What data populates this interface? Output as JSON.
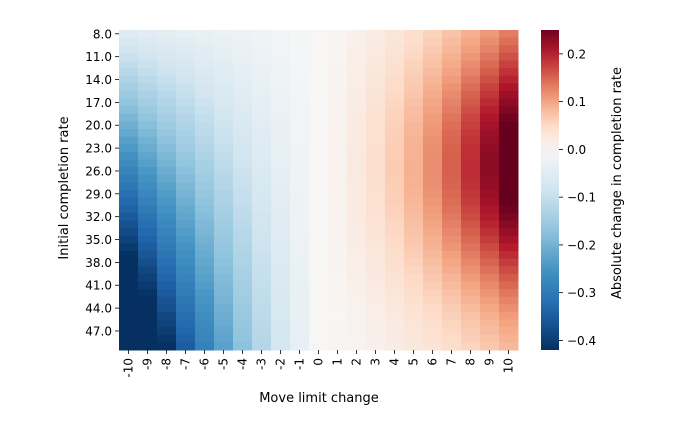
{
  "chart_data": {
    "type": "heatmap",
    "xlabel": "Move limit change",
    "ylabel": "Initial completion rate",
    "x_ticks": [
      "-10",
      "-9",
      "-8",
      "-7",
      "-6",
      "-5",
      "-4",
      "-3",
      "-2",
      "-1",
      "0",
      "1",
      "2",
      "3",
      "4",
      "5",
      "6",
      "7",
      "8",
      "9",
      "10"
    ],
    "y_ticks": [
      "8.0",
      "11.0",
      "14.0",
      "17.0",
      "20.0",
      "23.0",
      "26.0",
      "29.0",
      "32.0",
      "35.0",
      "38.0",
      "41.0",
      "44.0",
      "47.0"
    ],
    "y_values": [
      8,
      9,
      10,
      11,
      12,
      13,
      14,
      15,
      16,
      17,
      18,
      19,
      20,
      21,
      22,
      23,
      24,
      25,
      26,
      27,
      28,
      29,
      30,
      31,
      32,
      33,
      34,
      35,
      36,
      37,
      38,
      39,
      40,
      41,
      42,
      43,
      44,
      45,
      46,
      47,
      48,
      49
    ],
    "x_values": [
      -10,
      -9,
      -8,
      -7,
      -6,
      -5,
      -4,
      -3,
      -2,
      -1,
      0,
      1,
      2,
      3,
      4,
      5,
      6,
      7,
      8,
      9,
      10
    ],
    "z_range": [
      -0.42,
      0.25
    ],
    "colorbar": {
      "label": "Absolute change in completion rate",
      "ticks": [
        "0.2",
        "0.1",
        "0.0",
        "−0.1",
        "−0.2",
        "−0.3",
        "−0.4"
      ],
      "tick_values": [
        0.2,
        0.1,
        0.0,
        -0.1,
        -0.2,
        -0.3,
        -0.4
      ],
      "colormap": "RdBu_r",
      "colors": [
        "#053061",
        "#2166ac",
        "#4393c3",
        "#92c5de",
        "#d1e5f0",
        "#f7f7f7",
        "#fddbc7",
        "#f4a582",
        "#d6604d",
        "#b2182b",
        "#67001f"
      ]
    },
    "grid": false
  }
}
